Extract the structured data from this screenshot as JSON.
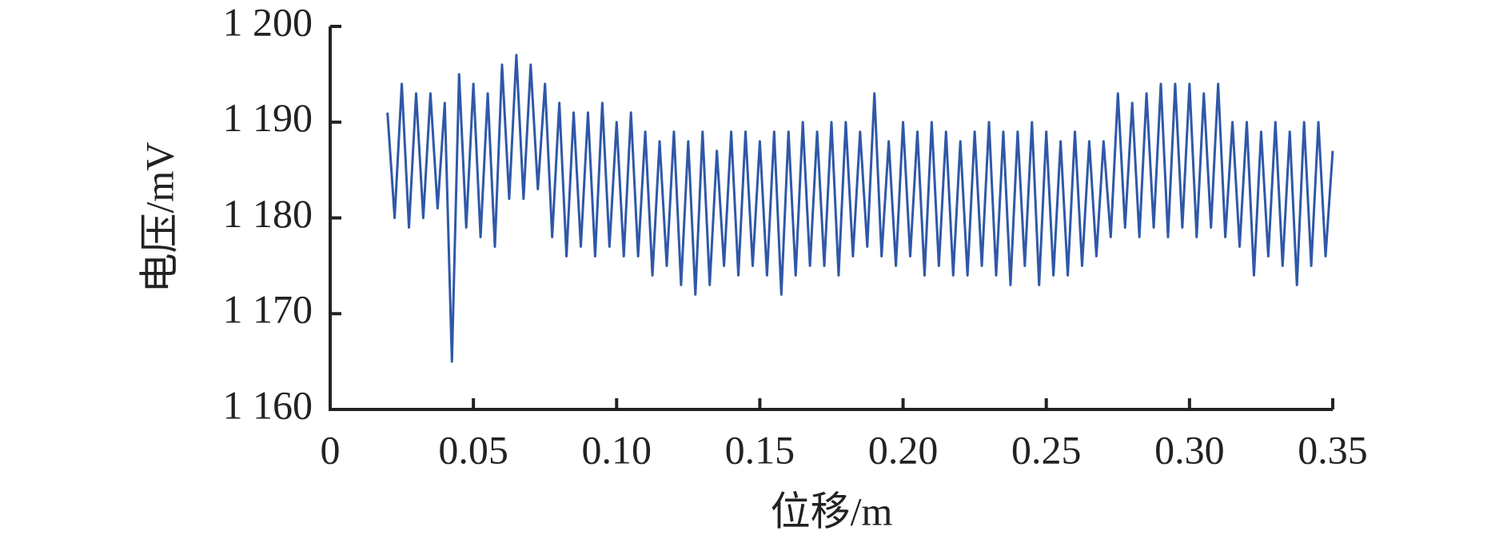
{
  "chart_data": {
    "type": "line",
    "xlabel": "位移/m",
    "ylabel": "电压/mV",
    "color": "#2f58a8",
    "xlim": [
      0,
      0.35
    ],
    "ylim": [
      1160,
      1200
    ],
    "xticks": [
      0,
      0.05,
      {
        "value": 0.1,
        "label": "0.10"
      },
      0.15,
      {
        "value": 0.2,
        "label": "0.20"
      },
      0.25,
      {
        "value": 0.3,
        "label": "0.30"
      },
      0.35
    ],
    "yticks": [
      {
        "value": 1160,
        "label": "1 160"
      },
      {
        "value": 1170,
        "label": "1 170"
      },
      {
        "value": 1180,
        "label": "1 180"
      },
      {
        "value": 1190,
        "label": "1 190"
      },
      {
        "value": 1200,
        "label": "1 200"
      }
    ],
    "x": [
      0.02,
      0.0225,
      0.025,
      0.0275,
      0.03,
      0.0325,
      0.035,
      0.0375,
      0.04,
      0.0425,
      0.045,
      0.0475,
      0.05,
      0.0525,
      0.055,
      0.0575,
      0.06,
      0.0625,
      0.065,
      0.0675,
      0.07,
      0.0725,
      0.075,
      0.0775,
      0.08,
      0.0825,
      0.085,
      0.0875,
      0.09,
      0.0925,
      0.095,
      0.0975,
      0.1,
      0.1025,
      0.105,
      0.1075,
      0.11,
      0.1125,
      0.115,
      0.1175,
      0.12,
      0.1225,
      0.125,
      0.1275,
      0.13,
      0.1325,
      0.135,
      0.1375,
      0.14,
      0.1425,
      0.145,
      0.1475,
      0.15,
      0.1525,
      0.155,
      0.1575,
      0.16,
      0.1625,
      0.165,
      0.1675,
      0.17,
      0.1725,
      0.175,
      0.1775,
      0.18,
      0.1825,
      0.185,
      0.1875,
      0.19,
      0.1925,
      0.195,
      0.1975,
      0.2,
      0.2025,
      0.205,
      0.2075,
      0.21,
      0.2125,
      0.215,
      0.2175,
      0.22,
      0.2225,
      0.225,
      0.2275,
      0.23,
      0.2325,
      0.235,
      0.2375,
      0.24,
      0.2425,
      0.245,
      0.2475,
      0.25,
      0.2525,
      0.255,
      0.2575,
      0.26,
      0.2625,
      0.265,
      0.2675,
      0.27,
      0.2725,
      0.275,
      0.2775,
      0.28,
      0.2825,
      0.285,
      0.2875,
      0.29,
      0.2925,
      0.295,
      0.2975,
      0.3,
      0.3025,
      0.305,
      0.3075,
      0.31,
      0.3125,
      0.315,
      0.3175,
      0.32,
      0.3225,
      0.325,
      0.3275,
      0.33,
      0.3325,
      0.335,
      0.3375,
      0.34,
      0.3425,
      0.345,
      0.3475,
      0.35
    ],
    "values": [
      1191,
      1180,
      1194,
      1179,
      1193,
      1180,
      1193,
      1181,
      1192,
      1165,
      1195,
      1179,
      1194,
      1178,
      1193,
      1177,
      1196,
      1182,
      1197,
      1182,
      1196,
      1183,
      1194,
      1178,
      1192,
      1176,
      1191,
      1177,
      1191,
      1176,
      1192,
      1177,
      1190,
      1176,
      1191,
      1176,
      1189,
      1174,
      1188,
      1175,
      1189,
      1173,
      1188,
      1172,
      1189,
      1173,
      1187,
      1175,
      1189,
      1174,
      1189,
      1175,
      1188,
      1174,
      1189,
      1172,
      1189,
      1174,
      1190,
      1175,
      1189,
      1175,
      1190,
      1174,
      1190,
      1176,
      1189,
      1177,
      1193,
      1176,
      1188,
      1175,
      1190,
      1176,
      1189,
      1174,
      1190,
      1175,
      1189,
      1174,
      1188,
      1174,
      1189,
      1175,
      1190,
      1174,
      1189,
      1173,
      1189,
      1175,
      1190,
      1173,
      1189,
      1174,
      1188,
      1174,
      1189,
      1175,
      1188,
      1176,
      1188,
      1178,
      1193,
      1179,
      1192,
      1178,
      1193,
      1179,
      1194,
      1178,
      1194,
      1179,
      1194,
      1178,
      1193,
      1179,
      1194,
      1178,
      1190,
      1177,
      1190,
      1174,
      1189,
      1176,
      1190,
      1175,
      1189,
      1173,
      1190,
      1175,
      1190,
      1176,
      1187
    ]
  }
}
